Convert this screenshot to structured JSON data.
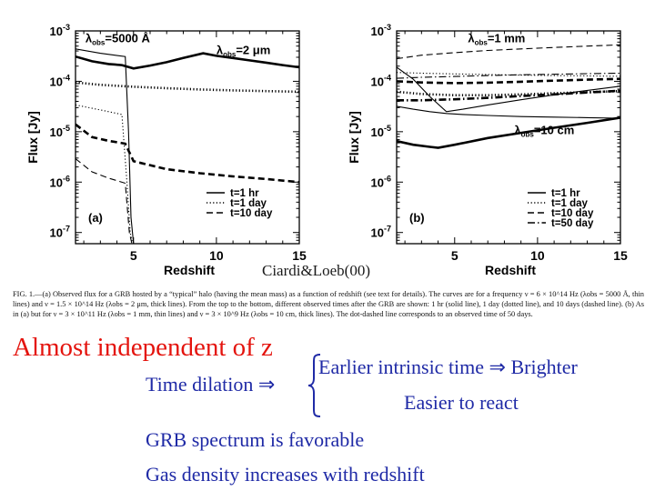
{
  "chart_data": [
    {
      "type": "line",
      "panel_label": "(a)",
      "xlabel": "Redshift",
      "ylabel": "Flux [Jy]",
      "xlim": [
        1.5,
        15
      ],
      "ylim": [
        6e-08,
        0.001
      ],
      "yscale": "log",
      "xticks": [
        5,
        10,
        15
      ],
      "yticks": [
        {
          "value": 1e-07,
          "label": "10-7"
        },
        {
          "value": 1e-06,
          "label": "10-6"
        },
        {
          "value": 1e-05,
          "label": "10-5"
        },
        {
          "value": 0.0001,
          "label": "10-4"
        },
        {
          "value": 0.001,
          "label": "10-3"
        }
      ],
      "annotations": [
        {
          "text": "λobs=5000 Å",
          "x": 2.1,
          "y": 0.0006
        },
        {
          "text": "λobs=2 μm",
          "x": 10,
          "y": 0.00035
        }
      ],
      "legend": [
        {
          "label": "t=1 hr",
          "style": "solid"
        },
        {
          "label": "t=1 day",
          "style": "dotted"
        },
        {
          "label": "t=10 day",
          "style": "dashed"
        }
      ],
      "series": [
        {
          "style": "solid",
          "width": "thick",
          "x": [
            1.5,
            2.5,
            3.5,
            4.3,
            5,
            6,
            7,
            8,
            9.2,
            10,
            11,
            12,
            13,
            14,
            15
          ],
          "y": [
            0.00031,
            0.00025,
            0.00022,
            0.00021,
            0.00018,
            0.000205,
            0.00024,
            0.00029,
            0.00036,
            0.00032,
            0.00029,
            0.00026,
            0.000235,
            0.00021,
            0.00019
          ]
        },
        {
          "style": "dotted",
          "width": "thick",
          "x": [
            1.5,
            3,
            5,
            7,
            9,
            11,
            13,
            15
          ],
          "y": [
            9.5e-05,
            8.5e-05,
            7.8e-05,
            7.3e-05,
            6.9e-05,
            6.6e-05,
            6.4e-05,
            6.2e-05
          ]
        },
        {
          "style": "dashed",
          "width": "thick",
          "x": [
            1.5,
            2.5,
            3.5,
            4.5,
            5,
            7,
            9,
            11,
            13,
            15
          ],
          "y": [
            1.4e-05,
            7.8e-06,
            6.6e-06,
            5.8e-06,
            2.6e-06,
            1.8e-06,
            1.5e-06,
            1.3e-06,
            1.15e-06,
            1e-06
          ]
        },
        {
          "style": "solid",
          "width": "thin",
          "x": [
            1.5,
            3,
            4.5,
            4.7,
            4.85,
            5.0
          ],
          "y": [
            0.00044,
            0.00036,
            0.00031,
            1e-05,
            2e-07,
            6e-08
          ]
        },
        {
          "style": "dotted",
          "width": "thin",
          "x": [
            1.5,
            3,
            4.3,
            4.6,
            4.8,
            4.95
          ],
          "y": [
            3.4e-05,
            2.7e-05,
            2.2e-05,
            1e-06,
            1e-07,
            6e-08
          ]
        },
        {
          "style": "dashed",
          "width": "thin",
          "x": [
            1.5,
            2.5,
            3.5,
            4.5,
            4.75,
            4.9
          ],
          "y": [
            2.9e-06,
            1.6e-06,
            1.2e-06,
            9.5e-07,
            1e-07,
            6e-08
          ]
        }
      ]
    },
    {
      "type": "line",
      "panel_label": "(b)",
      "xlabel": "Redshift",
      "ylabel": "Flux [Jy]",
      "xlim": [
        1.5,
        15
      ],
      "ylim": [
        6e-08,
        0.001
      ],
      "yscale": "log",
      "xticks": [
        5,
        10,
        15
      ],
      "yticks": [
        {
          "value": 1e-07,
          "label": "10-7"
        },
        {
          "value": 1e-06,
          "label": "10-6"
        },
        {
          "value": 1e-05,
          "label": "10-5"
        },
        {
          "value": 0.0001,
          "label": "10-4"
        },
        {
          "value": 0.001,
          "label": "10-3"
        }
      ],
      "annotations": [
        {
          "text": "λobs=1 mm",
          "x": 5.8,
          "y": 0.0006
        },
        {
          "text": "λobs=10 cm",
          "x": 8.6,
          "y": 9e-06
        }
      ],
      "legend": [
        {
          "label": "t=1 hr",
          "style": "solid"
        },
        {
          "label": "t=1 day",
          "style": "dotted"
        },
        {
          "label": "t=10 day",
          "style": "dashed"
        },
        {
          "label": "t=50 day",
          "style": "dashdot"
        }
      ],
      "series": [
        {
          "style": "dashed",
          "width": "thin",
          "x": [
            1.5,
            3,
            5,
            7,
            9,
            11,
            13,
            15
          ],
          "y": [
            0.00028,
            0.00033,
            0.00037,
            0.00041,
            0.00044,
            0.00047,
            0.0005,
            0.00053
          ]
        },
        {
          "style": "dotted",
          "width": "thin",
          "x": [
            1.5,
            3,
            5,
            7,
            9,
            11,
            13,
            15
          ],
          "y": [
            0.00015,
            0.000145,
            0.00014,
            0.000136,
            0.000133,
            0.00013,
            0.000128,
            0.000126
          ]
        },
        {
          "style": "dashdot",
          "width": "thin",
          "x": [
            1.5,
            3,
            5,
            7,
            9,
            11,
            13,
            15
          ],
          "y": [
            0.000115,
            0.00012,
            0.000125,
            0.00013,
            0.000135,
            0.000138,
            0.000142,
            0.000145
          ]
        },
        {
          "style": "solid",
          "width": "thin",
          "x": [
            1.5,
            2.5,
            3.5,
            4.5,
            5.5,
            7,
            9,
            11,
            13,
            15
          ],
          "y": [
            0.00019,
            0.00011,
            5e-05,
            2.5e-05,
            2.8e-05,
            3.4e-05,
            4.3e-05,
            5.4e-05,
            6.6e-05,
            8e-05
          ]
        },
        {
          "style": "dashed",
          "width": "thick",
          "x": [
            1.5,
            3,
            5,
            7,
            9,
            11,
            13,
            15
          ],
          "y": [
            0.0001,
            9.5e-05,
            9.2e-05,
            9.4e-05,
            9.8e-05,
            0.000103,
            0.000108,
            0.000112
          ]
        },
        {
          "style": "dotted",
          "width": "thick",
          "x": [
            1.5,
            3,
            5,
            7,
            9,
            11,
            13,
            15
          ],
          "y": [
            6.2e-05,
            5.6e-05,
            5.3e-05,
            5.3e-05,
            5.5e-05,
            5.8e-05,
            6.1e-05,
            6.4e-05
          ]
        },
        {
          "style": "dashdot",
          "width": "thick",
          "x": [
            1.5,
            3,
            5,
            7,
            9,
            11,
            13,
            15
          ],
          "y": [
            4.2e-05,
            4.2e-05,
            4.4e-05,
            4.7e-05,
            5.1e-05,
            5.5e-05,
            6e-05,
            6.5e-05
          ]
        },
        {
          "style": "solid",
          "width": "thin",
          "x": [
            1.5,
            2.5,
            3.5,
            4.5,
            5.5,
            7,
            9,
            11,
            13,
            15
          ],
          "y": [
            3.2e-05,
            2.8e-05,
            2.5e-05,
            2.3e-05,
            2.2e-05,
            2.1e-05,
            2e-05,
            1.95e-05,
            1.9e-05,
            1.85e-05
          ]
        },
        {
          "style": "solid",
          "width": "thick",
          "x": [
            1.5,
            2.5,
            3.5,
            4,
            5,
            7,
            9,
            11,
            13,
            15
          ],
          "y": [
            6.5e-06,
            5.5e-06,
            5e-06,
            4.8e-06,
            5.5e-06,
            7.5e-06,
            9.5e-06,
            1.2e-05,
            1.5e-05,
            1.9e-05
          ]
        }
      ]
    }
  ],
  "credit": {
    "name": "Ciardi&Loeb",
    "year": "(00)"
  },
  "caption": "FIG. 1.—(a) Observed flux for a GRB hosted by a “typical” halo (having the mean mass) as a function of redshift (see text for details). The curves are for a frequency ν = 6 × 10^14 Hz (λobs = 5000 Å, thin lines) and ν = 1.5 × 10^14 Hz (λobs = 2 μm, thick lines). From the top to the bottom, different observed times after the GRB are shown: 1 hr (solid line), 1 day (dotted line), and 10 days (dashed line). (b) As in (a) but for ν = 3 × 10^11 Hz (λobs = 1 mm, thin lines) and ν = 3 × 10^9 Hz (λobs = 10 cm, thick lines). The dot-dashed line corresponds to an observed time of 50 days.",
  "slide": {
    "headline": "Almost independent of z",
    "time_dilation": "Time dilation ⇒",
    "earlier": "Earlier intrinsic time ⇒ Brighter",
    "easier": "Easier to react",
    "spectrum": "GRB spectrum is favorable",
    "gas": "Gas density increases with redshift"
  },
  "colors": {
    "headline": "#e4140e",
    "body_text": "#1f2aa6"
  }
}
